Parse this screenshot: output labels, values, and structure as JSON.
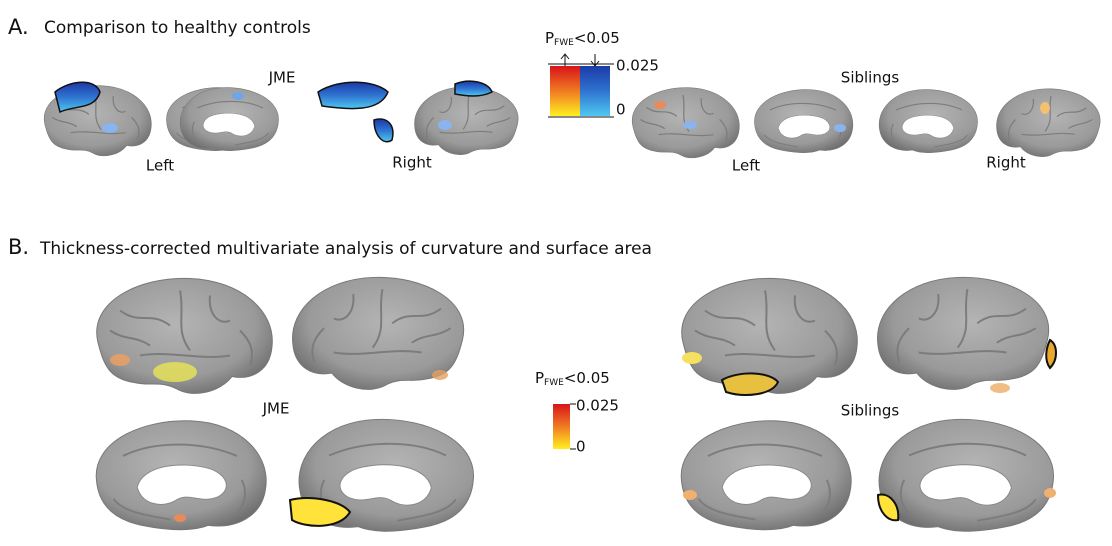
{
  "panel_a": {
    "label": "A.",
    "title": "Comparison to healthy controls",
    "groups": [
      {
        "name": "JME",
        "left": "Left",
        "right": "Right"
      },
      {
        "name": "Siblings",
        "left": "Left",
        "right": "Right"
      }
    ],
    "colorbar": {
      "p": "P",
      "subscript": "FWE",
      "threshold": "<0.05",
      "ticks": [
        "0.025",
        "0"
      ]
    }
  },
  "panel_b": {
    "label": "B.",
    "title": "Thickness-corrected multivariate analysis of curvature and surface area",
    "groups": [
      {
        "name": "JME"
      },
      {
        "name": "Siblings"
      }
    ],
    "colorbar": {
      "p": "P",
      "subscript": "FWE",
      "threshold": "<0.05",
      "ticks": [
        "0.025",
        "0"
      ]
    }
  }
}
